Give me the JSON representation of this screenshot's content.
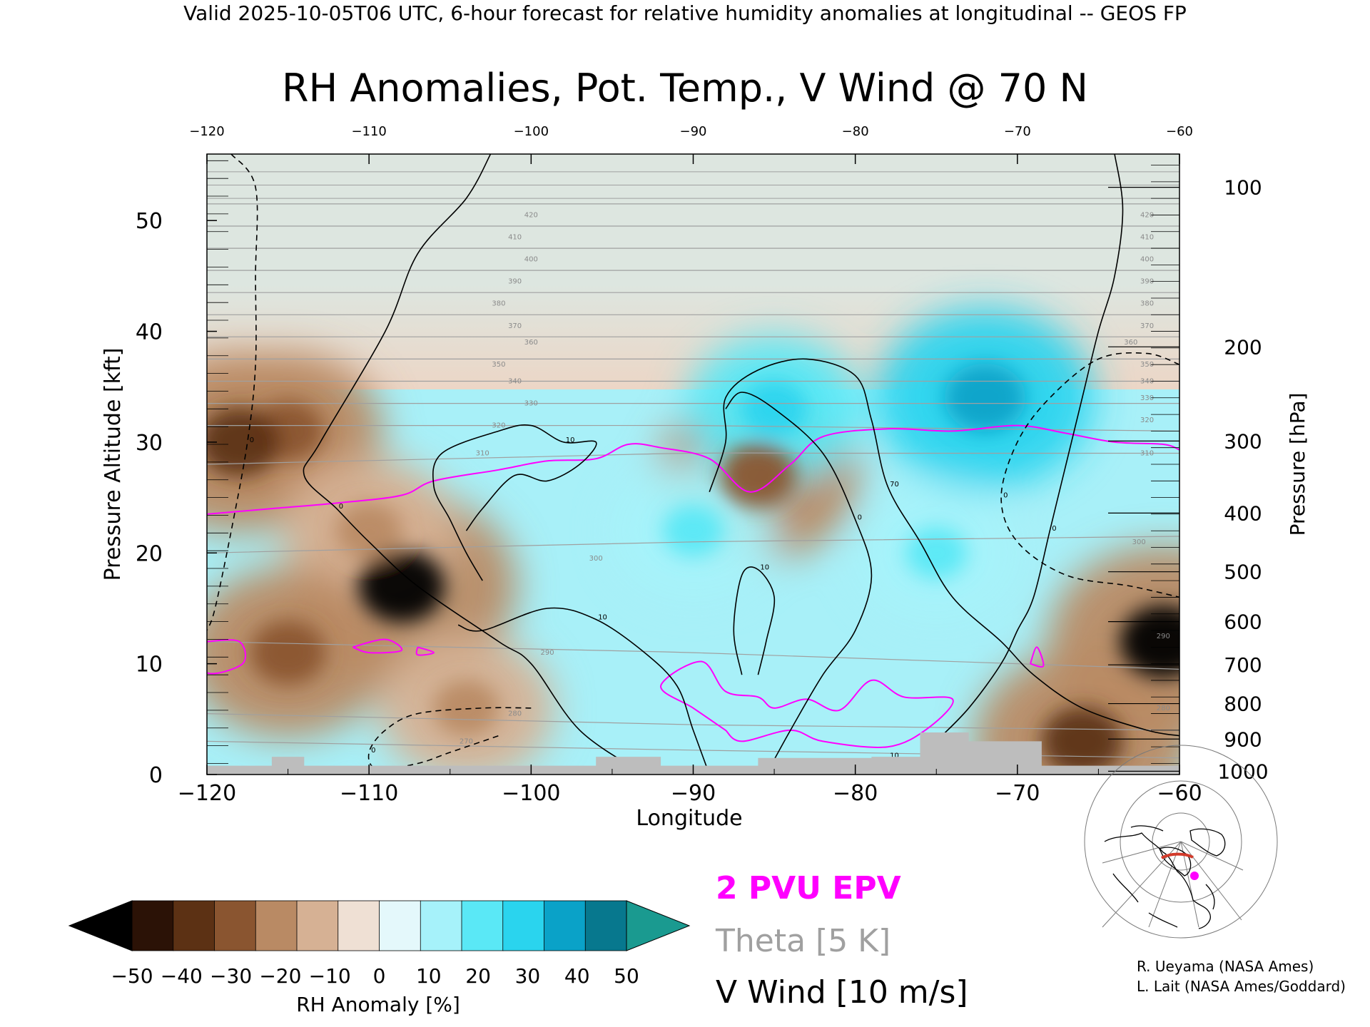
{
  "header": {
    "banner": "Valid 2025-10-05T06 UTC, 6-hour forecast for relative humidity anomalies at longitudinal -- GEOS FP",
    "title": "RH Anomalies, Pot. Temp., V Wind @ 70 N"
  },
  "colors": {
    "epv": "#ff00ff",
    "theta": "#a0a0a0",
    "wind": "#000000",
    "terrain": "#bdbdbd",
    "background": "#dde6e0"
  },
  "chart_data": {
    "type": "heatmap",
    "title": "RH Anomalies, Pot. Temp., V Wind @ 70 N",
    "xlabel": "Longitude",
    "ylabel_left": "Pressure Altitude [kft]",
    "ylabel_right": "Pressure [hPa]",
    "xlim": [
      -120,
      -60
    ],
    "ylim": [
      0,
      56
    ],
    "x_ticks": [
      -120,
      -110,
      -100,
      -90,
      -80,
      -70,
      -60
    ],
    "x_tick_labels": [
      "−120",
      "−110",
      "−100",
      "−90",
      "−80",
      "−70",
      "−60"
    ],
    "top_tick_labels": [
      "−120",
      "−110",
      "−100",
      "−90",
      "−80",
      "−70",
      "−60"
    ],
    "y_ticks": [
      0,
      10,
      20,
      30,
      40,
      50
    ],
    "y_tick_labels": [
      "0",
      "10",
      "20",
      "30",
      "40",
      "50"
    ],
    "pressure_ticks": [
      {
        "kft": 53,
        "label": "100"
      },
      {
        "kft": 38.6,
        "label": "200"
      },
      {
        "kft": 30.1,
        "label": "300"
      },
      {
        "kft": 23.6,
        "label": "400"
      },
      {
        "kft": 18.3,
        "label": "500"
      },
      {
        "kft": 13.8,
        "label": "600"
      },
      {
        "kft": 9.9,
        "label": "700"
      },
      {
        "kft": 6.4,
        "label": "800"
      },
      {
        "kft": 3.2,
        "label": "900"
      },
      {
        "kft": 0.3,
        "label": "1000"
      }
    ],
    "rh_anomaly_blobs": [
      {
        "lon": -115,
        "kft": 31,
        "value": -35
      },
      {
        "lon": -118,
        "kft": 30,
        "value": -45
      },
      {
        "lon": -108,
        "kft": 17,
        "value": -50
      },
      {
        "lon": -110,
        "kft": 22,
        "value": -30
      },
      {
        "lon": -115,
        "kft": 11,
        "value": -40
      },
      {
        "lon": -104,
        "kft": 6,
        "value": -30
      },
      {
        "lon": -86,
        "kft": 27,
        "value": -40
      },
      {
        "lon": -66,
        "kft": 3,
        "value": -45
      },
      {
        "lon": -61,
        "kft": 12,
        "value": -50
      },
      {
        "lon": -72,
        "kft": 34,
        "value": 45
      },
      {
        "lon": -85,
        "kft": 33,
        "value": 30
      },
      {
        "lon": -90,
        "kft": 22,
        "value": 25
      },
      {
        "lon": -75,
        "kft": 20,
        "value": 25
      }
    ],
    "theta_levels": [
      270,
      280,
      290,
      300,
      310,
      320,
      330,
      340,
      350,
      360,
      370,
      380,
      390,
      400,
      410,
      420
    ],
    "theta_ref": {
      "270": [
        3,
        2.2,
        1.5
      ],
      "280": [
        5.5,
        4.5,
        4
      ],
      "290": [
        12,
        11,
        9.5
      ],
      "300": [
        20,
        21,
        21.5
      ],
      "310": [
        28,
        29,
        29
      ],
      "320": [
        31.5,
        31.5,
        31
      ]
    },
    "theta_labels": [
      {
        "lon": -104,
        "kft": 3,
        "text": "270"
      },
      {
        "lon": -101,
        "kft": 5.5,
        "text": "280"
      },
      {
        "lon": -99,
        "kft": 11,
        "text": "290"
      },
      {
        "lon": -96,
        "kft": 19.5,
        "text": "300"
      },
      {
        "lon": -103,
        "kft": 29,
        "text": "310"
      },
      {
        "lon": -102,
        "kft": 31.5,
        "text": "320"
      },
      {
        "lon": -100,
        "kft": 33.5,
        "text": "330"
      },
      {
        "lon": -101,
        "kft": 35.5,
        "text": "340"
      },
      {
        "lon": -102,
        "kft": 37,
        "text": "350"
      },
      {
        "lon": -100,
        "kft": 39,
        "text": "360"
      },
      {
        "lon": -101,
        "kft": 40.5,
        "text": "370"
      },
      {
        "lon": -102,
        "kft": 42.5,
        "text": "380"
      },
      {
        "lon": -101,
        "kft": 44.5,
        "text": "390"
      },
      {
        "lon": -100,
        "kft": 46.5,
        "text": "400"
      },
      {
        "lon": -101,
        "kft": 48.5,
        "text": "410"
      },
      {
        "lon": -100,
        "kft": 50.5,
        "text": "420"
      },
      {
        "lon": -62,
        "kft": 50.5,
        "text": "420"
      },
      {
        "lon": -62,
        "kft": 48.5,
        "text": "410"
      },
      {
        "lon": -62,
        "kft": 46.5,
        "text": "400"
      },
      {
        "lon": -62,
        "kft": 44.5,
        "text": "390"
      },
      {
        "lon": -62,
        "kft": 42.5,
        "text": "380"
      },
      {
        "lon": -62,
        "kft": 40.5,
        "text": "370"
      },
      {
        "lon": -63,
        "kft": 39,
        "text": "360"
      },
      {
        "lon": -62,
        "kft": 37,
        "text": "350"
      },
      {
        "lon": -62,
        "kft": 35.5,
        "text": "340"
      },
      {
        "lon": -62,
        "kft": 34,
        "text": "330"
      },
      {
        "lon": -62,
        "kft": 32,
        "text": "320"
      },
      {
        "lon": -62,
        "kft": 29,
        "text": "310"
      },
      {
        "lon": -62.5,
        "kft": 21,
        "text": "300"
      },
      {
        "lon": -61,
        "kft": 12.5,
        "text": "290"
      },
      {
        "lon": -61,
        "kft": 6,
        "text": "280"
      }
    ],
    "epv_2pvu": [
      [
        -120,
        23.5
      ],
      [
        -116,
        24
      ],
      [
        -112,
        24.5
      ],
      [
        -108,
        25.2
      ],
      [
        -106,
        26.5
      ],
      [
        -102,
        27.5
      ],
      [
        -99,
        28.3
      ],
      [
        -96,
        28.5
      ],
      [
        -94,
        29.8
      ],
      [
        -92,
        29.5
      ],
      [
        -89,
        28.5
      ],
      [
        -86.5,
        25.5
      ],
      [
        -84,
        28
      ],
      [
        -82,
        30.5
      ],
      [
        -78,
        31.2
      ],
      [
        -74,
        31
      ],
      [
        -70,
        31.5
      ],
      [
        -67,
        30.8
      ],
      [
        -64,
        30
      ],
      [
        -61,
        29.8
      ],
      [
        -60,
        29.3
      ]
    ],
    "epv_low": [
      [
        [
          -120,
          12
        ],
        [
          -118,
          12
        ],
        [
          -117.8,
          10
        ],
        [
          -120,
          9.2
        ]
      ],
      [
        [
          -111,
          11.5
        ],
        [
          -109,
          12.2
        ],
        [
          -108,
          11.2
        ],
        [
          -110,
          11
        ]
      ],
      [
        [
          -107,
          11.5
        ],
        [
          -106,
          11
        ],
        [
          -107,
          10.8
        ]
      ],
      [
        [
          -88,
          4
        ],
        [
          -90,
          6
        ],
        [
          -92,
          8
        ],
        [
          -89.5,
          10.2
        ],
        [
          -88,
          7.5
        ],
        [
          -86,
          7
        ],
        [
          -85,
          6
        ],
        [
          -83,
          6.8
        ],
        [
          -81,
          5.8
        ],
        [
          -79,
          8.5
        ],
        [
          -77,
          7
        ],
        [
          -74,
          6.8
        ],
        [
          -75.5,
          4.2
        ],
        [
          -78,
          2.5
        ],
        [
          -82,
          3
        ],
        [
          -84,
          4
        ],
        [
          -87,
          3
        ]
      ],
      [
        [
          -69.2,
          10
        ],
        [
          -68.8,
          11.5
        ],
        [
          -68.4,
          9.8
        ]
      ]
    ],
    "wind_contours": [
      {
        "label": "0",
        "style": "solid",
        "points": [
          [
            -102.5,
            56
          ],
          [
            -104,
            52
          ],
          [
            -107,
            47
          ],
          [
            -109,
            40
          ],
          [
            -113,
            30
          ],
          [
            -114,
            27
          ],
          [
            -112,
            24
          ],
          [
            -110,
            21
          ],
          [
            -107,
            17
          ],
          [
            -102,
            12
          ],
          [
            -100,
            10
          ],
          [
            -97,
            4
          ],
          [
            -93,
            0
          ]
        ]
      },
      {
        "label": "10",
        "style": "solid",
        "points": [
          [
            -103,
            17.5
          ],
          [
            -104,
            20
          ],
          [
            -105,
            23
          ],
          [
            -106,
            26
          ],
          [
            -105.5,
            29
          ],
          [
            -102,
            31
          ],
          [
            -100,
            31.5
          ],
          [
            -98,
            30
          ],
          [
            -96,
            30
          ],
          [
            -97,
            28
          ],
          [
            -99,
            26.5
          ],
          [
            -101,
            27
          ],
          [
            -103,
            24
          ],
          [
            -104,
            22
          ]
        ]
      },
      {
        "label": "70",
        "style": "solid",
        "points": [
          [
            -89,
            25.5
          ],
          [
            -88,
            30
          ],
          [
            -88,
            34
          ],
          [
            -86,
            36.5
          ],
          [
            -83,
            37.5
          ],
          [
            -80,
            36
          ],
          [
            -79,
            32
          ],
          [
            -78,
            26
          ],
          [
            -76,
            21
          ],
          [
            -74,
            16
          ],
          [
            -71,
            12
          ],
          [
            -69,
            9
          ],
          [
            -66,
            6
          ],
          [
            -62,
            4
          ],
          [
            -60,
            3.5
          ]
        ]
      },
      {
        "label": "10",
        "style": "solid",
        "points": [
          [
            -89,
            0
          ],
          [
            -90,
            4
          ],
          [
            -91,
            8
          ],
          [
            -93,
            11
          ],
          [
            -96,
            14
          ],
          [
            -99,
            15
          ],
          [
            -103,
            13
          ],
          [
            -104.5,
            13.5
          ]
        ]
      },
      {
        "label": "0",
        "style": "solid",
        "points": [
          [
            -85.5,
            0
          ],
          [
            -84,
            4
          ],
          [
            -82,
            9
          ],
          [
            -80,
            13
          ],
          [
            -79,
            18
          ],
          [
            -80,
            23
          ],
          [
            -82,
            29
          ],
          [
            -85,
            33
          ],
          [
            -87,
            34.5
          ],
          [
            -88,
            33
          ]
        ]
      },
      {
        "label": "0",
        "style": "solid",
        "points": [
          [
            -77,
            0
          ],
          [
            -75,
            3
          ],
          [
            -73,
            6
          ],
          [
            -71,
            10
          ],
          [
            -70,
            13
          ],
          [
            -69,
            16
          ],
          [
            -68,
            22
          ],
          [
            -67,
            28
          ],
          [
            -66,
            34
          ],
          [
            -65,
            40
          ],
          [
            -64,
            45
          ],
          [
            -63.5,
            51
          ],
          [
            -64,
            56
          ]
        ]
      },
      {
        "label": "0",
        "style": "dashed",
        "points": [
          [
            -118.5,
            56
          ],
          [
            -117,
            53
          ],
          [
            -117,
            45
          ],
          [
            -117,
            37
          ],
          [
            -117.5,
            30
          ],
          [
            -118.5,
            22
          ],
          [
            -119.5,
            15
          ],
          [
            -120,
            13
          ]
        ]
      },
      {
        "label": "0",
        "style": "dashed",
        "points": [
          [
            -60,
            37
          ],
          [
            -62,
            38
          ],
          [
            -65,
            37.5
          ],
          [
            -68,
            34
          ],
          [
            -70,
            30
          ],
          [
            -71,
            25
          ],
          [
            -70,
            21
          ],
          [
            -67,
            18
          ],
          [
            -63,
            17
          ],
          [
            -60,
            16
          ]
        ]
      },
      {
        "label": "0",
        "style": "dashed",
        "points": [
          [
            -100,
            6
          ],
          [
            -103,
            6
          ],
          [
            -107,
            5.5
          ],
          [
            -109,
            4
          ],
          [
            -110,
            2
          ],
          [
            -109.5,
            0.5
          ],
          [
            -107,
            1
          ],
          [
            -105,
            2
          ],
          [
            -102,
            3.5
          ]
        ]
      },
      {
        "label": "10",
        "style": "solid",
        "points": [
          [
            -87,
            9
          ],
          [
            -87.5,
            13
          ],
          [
            -87,
            18
          ],
          [
            -86,
            18.5
          ],
          [
            -85,
            16
          ],
          [
            -85.5,
            12
          ],
          [
            -86,
            9
          ]
        ]
      },
      {
        "label": "10",
        "style": "solid",
        "points": [
          [
            -82,
            0.8
          ],
          [
            -80,
            0.6
          ],
          [
            -78,
            1.5
          ],
          [
            -76,
            1
          ]
        ]
      }
    ],
    "terrain_kft": [
      [
        -120,
        0.8
      ],
      [
        -116,
        0.8
      ],
      [
        -116,
        1.6
      ],
      [
        -114,
        1.6
      ],
      [
        -114,
        0.8
      ],
      [
        -96,
        0.8
      ],
      [
        -96,
        1.6
      ],
      [
        -92,
        1.6
      ],
      [
        -92,
        0.8
      ],
      [
        -86,
        0.8
      ],
      [
        -86,
        1.5
      ],
      [
        -79,
        1.5
      ],
      [
        -79,
        1.6
      ],
      [
        -76,
        1.6
      ],
      [
        -76,
        3.8
      ],
      [
        -73,
        3.8
      ],
      [
        -73,
        3
      ],
      [
        -68.5,
        3
      ],
      [
        -68.5,
        0.8
      ],
      [
        -60,
        0.8
      ]
    ],
    "legend": {
      "epv": "2 PVU EPV",
      "theta": "Theta [5 K]",
      "wind": "V Wind [10 m/s]"
    },
    "colorbar": {
      "label": "RH Anomaly [%]",
      "ticks": [
        "−50",
        "−40",
        "−30",
        "−20",
        "−10",
        "0",
        "10",
        "20",
        "30",
        "40",
        "50"
      ],
      "under_color": "#000000",
      "over_color": "#1a9a90",
      "colors": [
        "#2b1206",
        "#5c3114",
        "#8a5530",
        "#b98a64",
        "#d6b194",
        "#efe0d4",
        "#e4f8fb",
        "#a6f2fa",
        "#5ae8f6",
        "#2ad4ee",
        "#0aa2c8",
        "#07788e"
      ]
    }
  },
  "credits": {
    "line1": "R. Ueyama (NASA Ames)",
    "line2": "L. Lait (NASA Ames/Goddard)"
  }
}
